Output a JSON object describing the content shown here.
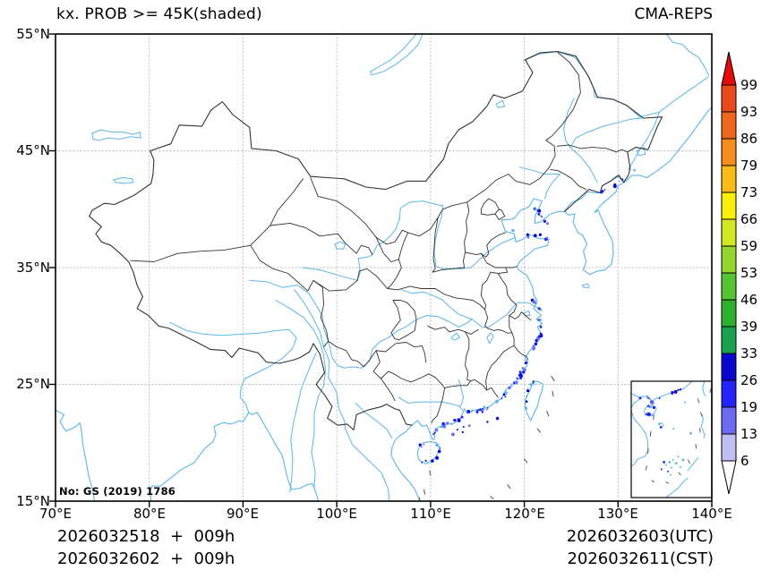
{
  "header": {
    "title": "kx. PROB >= 45K(shaded)",
    "model": "CMA-REPS"
  },
  "axes": {
    "x_ticks": [
      "70°E",
      "80°E",
      "90°E",
      "100°E",
      "110°E",
      "120°E",
      "130°E",
      "140°E"
    ],
    "y_ticks": [
      "55°N",
      "45°N",
      "35°N",
      "25°N",
      "15°N"
    ]
  },
  "colorbar": {
    "labels_top_to_bottom": [
      "99",
      "93",
      "86",
      "79",
      "73",
      "66",
      "59",
      "53",
      "46",
      "39",
      "33",
      "26",
      "19",
      "13",
      "6"
    ],
    "colors_top_to_bottom": [
      "#e84a1a",
      "#ef671b",
      "#f68b1e",
      "#fbbb18",
      "#f8ef0c",
      "#d3e724",
      "#95d52d",
      "#54c433",
      "#2eb02e",
      "#1aa04e",
      "#0808d0",
      "#2424fa",
      "#6b6bf2",
      "#bfbff4"
    ],
    "over_color": "#e20a0a",
    "under_color": "#ffffff"
  },
  "map": {
    "approval_no": "No: GS (2019) 1786",
    "colors": {
      "coast_river": "#5ab6e8",
      "boundary": "#333333",
      "grid": "#b4b4b4",
      "dash_line": "#5a5a5a",
      "shade_dark": "#0808d0",
      "shade_mid": "#2424fa",
      "shade_light": "#6b6bf2"
    }
  },
  "footer": {
    "left_line1": "2026032518  +  009h",
    "left_line2": "2026032602  +  009h",
    "right_line1": "2026032603(UTC)",
    "right_line2": "2026032611(CST)"
  }
}
